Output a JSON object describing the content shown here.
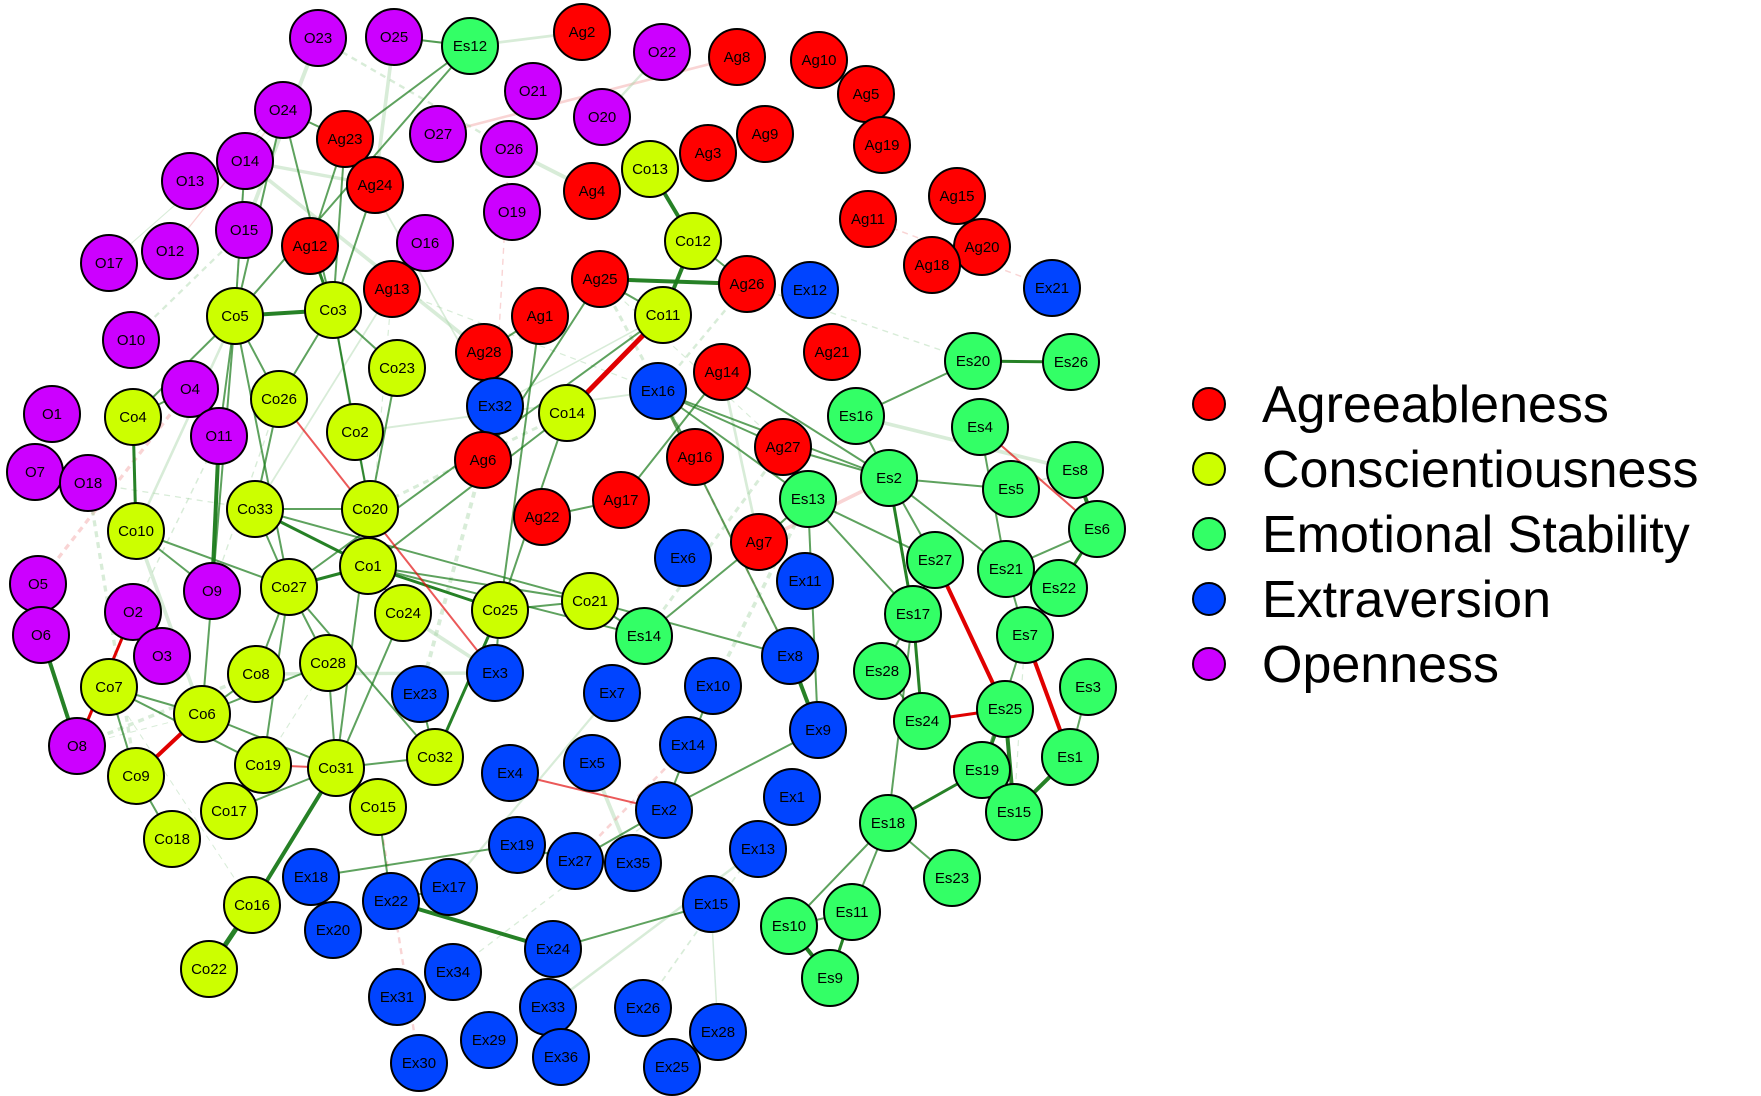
{
  "groups": {
    "Ag": {
      "name": "Agreeableness",
      "color": "#ff0000"
    },
    "Co": {
      "name": "Conscientiousness",
      "color": "#ccff00"
    },
    "Es": {
      "name": "Emotional Stability",
      "color": "#33ff66"
    },
    "Ex": {
      "name": "Extraversion",
      "color": "#0044ff"
    },
    "O": {
      "name": "Openness",
      "color": "#cc00ff"
    }
  },
  "legend": [
    {
      "label": "Agreeableness",
      "group": "Ag"
    },
    {
      "label": "Conscientiousness",
      "group": "Co"
    },
    {
      "label": "Emotional Stability",
      "group": "Es"
    },
    {
      "label": "Extraversion",
      "group": "Ex"
    },
    {
      "label": "Openness",
      "group": "O"
    }
  ],
  "edge_colors": {
    "positive": "#1a7a1a",
    "negative": "#e00000"
  },
  "nodes": [
    {
      "id": "O23",
      "group": "O"
    },
    {
      "id": "O25",
      "group": "O"
    },
    {
      "id": "Es12",
      "group": "Es"
    },
    {
      "id": "Ag2",
      "group": "Ag"
    },
    {
      "id": "O22",
      "group": "O"
    },
    {
      "id": "Ag8",
      "group": "Ag"
    },
    {
      "id": "Ag10",
      "group": "Ag"
    },
    {
      "id": "Ag5",
      "group": "Ag"
    },
    {
      "id": "O21",
      "group": "O"
    },
    {
      "id": "O20",
      "group": "O"
    },
    {
      "id": "O24",
      "group": "O"
    },
    {
      "id": "Ag23",
      "group": "Ag"
    },
    {
      "id": "O27",
      "group": "O"
    },
    {
      "id": "O26",
      "group": "O"
    },
    {
      "id": "Ag9",
      "group": "Ag"
    },
    {
      "id": "Ag19",
      "group": "Ag"
    },
    {
      "id": "Ag3",
      "group": "Ag"
    },
    {
      "id": "O14",
      "group": "O"
    },
    {
      "id": "Co13",
      "group": "Co"
    },
    {
      "id": "O13",
      "group": "O"
    },
    {
      "id": "Ag24",
      "group": "Ag"
    },
    {
      "id": "Ag4",
      "group": "Ag"
    },
    {
      "id": "O19",
      "group": "O"
    },
    {
      "id": "Ag15",
      "group": "Ag"
    },
    {
      "id": "Ag11",
      "group": "Ag"
    },
    {
      "id": "O15",
      "group": "O"
    },
    {
      "id": "O12",
      "group": "O"
    },
    {
      "id": "O17",
      "group": "O"
    },
    {
      "id": "Ag12",
      "group": "Ag"
    },
    {
      "id": "O16",
      "group": "O"
    },
    {
      "id": "Co12",
      "group": "Co"
    },
    {
      "id": "Ag20",
      "group": "Ag"
    },
    {
      "id": "Ag18",
      "group": "Ag"
    },
    {
      "id": "Ag25",
      "group": "Ag"
    },
    {
      "id": "Ag26",
      "group": "Ag"
    },
    {
      "id": "Ex12",
      "group": "Ex"
    },
    {
      "id": "Ex21",
      "group": "Ex"
    },
    {
      "id": "Ag13",
      "group": "Ag"
    },
    {
      "id": "Co5",
      "group": "Co"
    },
    {
      "id": "Co3",
      "group": "Co"
    },
    {
      "id": "Ag1",
      "group": "Ag"
    },
    {
      "id": "Co11",
      "group": "Co"
    },
    {
      "id": "O10",
      "group": "O"
    },
    {
      "id": "Ag21",
      "group": "Ag"
    },
    {
      "id": "Es20",
      "group": "Es"
    },
    {
      "id": "Es26",
      "group": "Es"
    },
    {
      "id": "Ag28",
      "group": "Ag"
    },
    {
      "id": "Co23",
      "group": "Co"
    },
    {
      "id": "Ag14",
      "group": "Ag"
    },
    {
      "id": "O4",
      "group": "O"
    },
    {
      "id": "Co26",
      "group": "Co"
    },
    {
      "id": "Ex16",
      "group": "Ex"
    },
    {
      "id": "Ex32",
      "group": "Ex"
    },
    {
      "id": "Co4",
      "group": "Co"
    },
    {
      "id": "O1",
      "group": "O"
    },
    {
      "id": "Co14",
      "group": "Co"
    },
    {
      "id": "Es16",
      "group": "Es"
    },
    {
      "id": "Es4",
      "group": "Es"
    },
    {
      "id": "Co2",
      "group": "Co"
    },
    {
      "id": "O11",
      "group": "O"
    },
    {
      "id": "Ag27",
      "group": "Ag"
    },
    {
      "id": "Ag6",
      "group": "Ag"
    },
    {
      "id": "Ag16",
      "group": "Ag"
    },
    {
      "id": "O7",
      "group": "O"
    },
    {
      "id": "O18",
      "group": "O"
    },
    {
      "id": "Es8",
      "group": "Es"
    },
    {
      "id": "Es2",
      "group": "Es"
    },
    {
      "id": "Es5",
      "group": "Es"
    },
    {
      "id": "Es13",
      "group": "Es"
    },
    {
      "id": "Co33",
      "group": "Co"
    },
    {
      "id": "Co20",
      "group": "Co"
    },
    {
      "id": "Ag17",
      "group": "Ag"
    },
    {
      "id": "Ag22",
      "group": "Ag"
    },
    {
      "id": "Es6",
      "group": "Es"
    },
    {
      "id": "Co10",
      "group": "Co"
    },
    {
      "id": "Ag7",
      "group": "Ag"
    },
    {
      "id": "Ex6",
      "group": "Ex"
    },
    {
      "id": "Es27",
      "group": "Es"
    },
    {
      "id": "Es21",
      "group": "Es"
    },
    {
      "id": "Co1",
      "group": "Co"
    },
    {
      "id": "Ex11",
      "group": "Ex"
    },
    {
      "id": "Es22",
      "group": "Es"
    },
    {
      "id": "O5",
      "group": "O"
    },
    {
      "id": "O9",
      "group": "O"
    },
    {
      "id": "Co27",
      "group": "Co"
    },
    {
      "id": "Co21",
      "group": "Co"
    },
    {
      "id": "Co24",
      "group": "Co"
    },
    {
      "id": "Co25",
      "group": "Co"
    },
    {
      "id": "Es17",
      "group": "Es"
    },
    {
      "id": "O2",
      "group": "O"
    },
    {
      "id": "Es14",
      "group": "Es"
    },
    {
      "id": "O6",
      "group": "O"
    },
    {
      "id": "Es7",
      "group": "Es"
    },
    {
      "id": "O3",
      "group": "O"
    },
    {
      "id": "Ex8",
      "group": "Ex"
    },
    {
      "id": "Co8",
      "group": "Co"
    },
    {
      "id": "Co28",
      "group": "Co"
    },
    {
      "id": "Es28",
      "group": "Es"
    },
    {
      "id": "Ex3",
      "group": "Ex"
    },
    {
      "id": "Co7",
      "group": "Co"
    },
    {
      "id": "Es3",
      "group": "Es"
    },
    {
      "id": "Ex10",
      "group": "Ex"
    },
    {
      "id": "Ex23",
      "group": "Ex"
    },
    {
      "id": "Ex7",
      "group": "Ex"
    },
    {
      "id": "Es25",
      "group": "Es"
    },
    {
      "id": "Co6",
      "group": "Co"
    },
    {
      "id": "Es24",
      "group": "Es"
    },
    {
      "id": "Ex9",
      "group": "Ex"
    },
    {
      "id": "O8",
      "group": "O"
    },
    {
      "id": "Ex14",
      "group": "Ex"
    },
    {
      "id": "Es1",
      "group": "Es"
    },
    {
      "id": "Co32",
      "group": "Co"
    },
    {
      "id": "Co19",
      "group": "Co"
    },
    {
      "id": "Co31",
      "group": "Co"
    },
    {
      "id": "Ex5",
      "group": "Ex"
    },
    {
      "id": "Ex4",
      "group": "Ex"
    },
    {
      "id": "Es19",
      "group": "Es"
    },
    {
      "id": "Co9",
      "group": "Co"
    },
    {
      "id": "Co15",
      "group": "Co"
    },
    {
      "id": "Ex1",
      "group": "Ex"
    },
    {
      "id": "Ex2",
      "group": "Ex"
    },
    {
      "id": "Co17",
      "group": "Co"
    },
    {
      "id": "Es15",
      "group": "Es"
    },
    {
      "id": "Es18",
      "group": "Es"
    },
    {
      "id": "Co18",
      "group": "Co"
    },
    {
      "id": "Ex19",
      "group": "Ex"
    },
    {
      "id": "Ex13",
      "group": "Ex"
    },
    {
      "id": "Ex27",
      "group": "Ex"
    },
    {
      "id": "Ex35",
      "group": "Ex"
    },
    {
      "id": "Ex18",
      "group": "Ex"
    },
    {
      "id": "Ex17",
      "group": "Ex"
    },
    {
      "id": "Es23",
      "group": "Es"
    },
    {
      "id": "Co16",
      "group": "Co"
    },
    {
      "id": "Ex22",
      "group": "Ex"
    },
    {
      "id": "Ex15",
      "group": "Ex"
    },
    {
      "id": "Es11",
      "group": "Es"
    },
    {
      "id": "Es10",
      "group": "Es"
    },
    {
      "id": "Ex20",
      "group": "Ex"
    },
    {
      "id": "Ex24",
      "group": "Ex"
    },
    {
      "id": "Co22",
      "group": "Co"
    },
    {
      "id": "Es9",
      "group": "Es"
    },
    {
      "id": "Ex34",
      "group": "Ex"
    },
    {
      "id": "Ex31",
      "group": "Ex"
    },
    {
      "id": "Ex33",
      "group": "Ex"
    },
    {
      "id": "Ex26",
      "group": "Ex"
    },
    {
      "id": "Ex28",
      "group": "Ex"
    },
    {
      "id": "Ex29",
      "group": "Ex"
    },
    {
      "id": "Ex36",
      "group": "Ex"
    },
    {
      "id": "Ex30",
      "group": "Ex"
    },
    {
      "id": "Ex25",
      "group": "Ex"
    }
  ],
  "edges": [
    [
      "O25",
      "Es12",
      "pos",
      2
    ],
    [
      "Es12",
      "Ag23",
      "pos",
      2
    ],
    [
      "Es12",
      "Co5",
      "pos",
      2
    ],
    [
      "O24",
      "Ag23",
      "pos",
      2
    ],
    [
      "O24",
      "Co3",
      "pos",
      2
    ],
    [
      "O24",
      "Co5",
      "pos",
      2
    ],
    [
      "Ag23",
      "Co3",
      "pos",
      2
    ],
    [
      "Ag23",
      "Ag12",
      "pos",
      2
    ],
    [
      "Ag24",
      "Co3",
      "pos",
      2
    ],
    [
      "Ag12",
      "Co3",
      "pos",
      3
    ],
    [
      "Co5",
      "Co3",
      "pos",
      4
    ],
    [
      "Co5",
      "Co4",
      "pos",
      2
    ],
    [
      "Co5",
      "O11",
      "pos",
      2
    ],
    [
      "Co5",
      "Co26",
      "pos",
      2
    ],
    [
      "Co5",
      "Co27",
      "pos",
      2
    ],
    [
      "Co3",
      "Co2",
      "pos",
      2
    ],
    [
      "Co3",
      "Co23",
      "pos",
      2
    ],
    [
      "Co3",
      "Co20",
      "pos",
      2
    ],
    [
      "Co3",
      "Co26",
      "pos",
      2
    ],
    [
      "O14",
      "Co5",
      "pos",
      2
    ],
    [
      "Co13",
      "Co12",
      "pos",
      4
    ],
    [
      "Co12",
      "Co11",
      "pos",
      4
    ],
    [
      "Ag25",
      "Ag26",
      "pos",
      4
    ],
    [
      "Ag25",
      "Co11",
      "pos",
      2
    ],
    [
      "Co11",
      "Co14",
      "neg",
      5
    ],
    [
      "Co11",
      "Co27",
      "pos",
      2
    ],
    [
      "Ag25",
      "Ag6",
      "pos",
      2
    ],
    [
      "Ag26",
      "Co12",
      "pos",
      2
    ],
    [
      "Ag14",
      "Ag17",
      "pos",
      2
    ],
    [
      "Ag28",
      "Ag1",
      "pos",
      2
    ],
    [
      "Co4",
      "Co10",
      "pos",
      3
    ],
    [
      "O11",
      "O9",
      "pos",
      4
    ],
    [
      "Co10",
      "Co27",
      "pos",
      2
    ],
    [
      "Co10",
      "O9",
      "pos",
      2
    ],
    [
      "Co33",
      "Co1",
      "pos",
      3
    ],
    [
      "Co33",
      "Co20",
      "pos",
      2
    ],
    [
      "Co33",
      "Co21",
      "pos",
      2
    ],
    [
      "Co20",
      "Co1",
      "pos",
      3
    ],
    [
      "Co1",
      "Co27",
      "pos",
      3
    ],
    [
      "Co1",
      "Co25",
      "pos",
      3
    ],
    [
      "Co1",
      "Co24",
      "pos",
      2
    ],
    [
      "Co1",
      "Co21",
      "pos",
      2
    ],
    [
      "Co27",
      "Co28",
      "pos",
      2
    ],
    [
      "Co27",
      "Co8",
      "pos",
      2
    ],
    [
      "Co27",
      "Co19",
      "pos",
      2
    ],
    [
      "Co27",
      "Co32",
      "pos",
      2
    ],
    [
      "Co25",
      "Co21",
      "pos",
      2
    ],
    [
      "Co25",
      "Co32",
      "pos",
      3
    ],
    [
      "Co25",
      "Co14",
      "pos",
      2
    ],
    [
      "Co28",
      "Co31",
      "pos",
      2
    ],
    [
      "Co8",
      "Co6",
      "pos",
      2
    ],
    [
      "Co6",
      "Co7",
      "pos",
      2
    ],
    [
      "Co6",
      "Co9",
      "neg",
      4
    ],
    [
      "Co6",
      "Co31",
      "pos",
      2
    ],
    [
      "Co7",
      "Co9",
      "pos",
      2
    ],
    [
      "O6",
      "O8",
      "pos",
      4
    ],
    [
      "O2",
      "O8",
      "neg",
      3
    ],
    [
      "Co31",
      "Co19",
      "neg",
      2
    ],
    [
      "Co31",
      "Co16",
      "pos",
      4
    ],
    [
      "Co31",
      "Co17",
      "pos",
      2
    ],
    [
      "Co31",
      "Co32",
      "pos",
      2
    ],
    [
      "Co16",
      "Co22",
      "pos",
      5
    ],
    [
      "Co31",
      "Co20",
      "pos",
      2
    ],
    [
      "Co9",
      "Co18",
      "pos",
      2
    ],
    [
      "Co32",
      "Ex23",
      "pos",
      2
    ],
    [
      "Co15",
      "Ex22",
      "pos",
      2
    ],
    [
      "Ex18",
      "Ex19",
      "pos",
      2
    ],
    [
      "Ex22",
      "Ex24",
      "pos",
      4
    ],
    [
      "Ex22",
      "Ex17",
      "pos",
      2
    ],
    [
      "Ex19",
      "Ex27",
      "pos",
      2
    ],
    [
      "Ex27",
      "Ex2",
      "pos",
      2
    ],
    [
      "Ex27",
      "Ex35",
      "pos",
      2
    ],
    [
      "Ex4",
      "Ex2",
      "neg",
      2
    ],
    [
      "Ex2",
      "Ex9",
      "pos",
      2
    ],
    [
      "Ex8",
      "Ex9",
      "pos",
      4
    ],
    [
      "Ex8",
      "Co21",
      "pos",
      2
    ],
    [
      "Ex16",
      "Es13",
      "pos",
      2
    ],
    [
      "Ex16",
      "Ag27",
      "pos",
      2
    ],
    [
      "Ex16",
      "Es2",
      "pos",
      2
    ],
    [
      "Ex16",
      "Ex8",
      "pos",
      2
    ],
    [
      "Ag27",
      "Es2",
      "pos",
      2
    ],
    [
      "Ag14",
      "Es2",
      "pos",
      2
    ],
    [
      "Ag16",
      "Ex16",
      "pos",
      2
    ],
    [
      "Es16",
      "Es20",
      "pos",
      2
    ],
    [
      "Es20",
      "Es26",
      "pos",
      3
    ],
    [
      "Es16",
      "Es2",
      "pos",
      2
    ],
    [
      "Es2",
      "Es27",
      "pos",
      2
    ],
    [
      "Es2",
      "Es17",
      "pos",
      3
    ],
    [
      "Es2",
      "Es21",
      "pos",
      2
    ],
    [
      "Es13",
      "Es17",
      "pos",
      2
    ],
    [
      "Es13",
      "Es27",
      "pos",
      2
    ],
    [
      "Es13",
      "Ex9",
      "pos",
      2
    ],
    [
      "Es4",
      "Es21",
      "pos",
      2
    ],
    [
      "Es4",
      "Es6",
      "neg",
      2
    ],
    [
      "Es8",
      "Es6",
      "pos",
      4
    ],
    [
      "Es6",
      "Es22",
      "pos",
      3
    ],
    [
      "Es6",
      "Es21",
      "pos",
      2
    ],
    [
      "Es21",
      "Es7",
      "pos",
      2
    ],
    [
      "Es21",
      "Es22",
      "pos",
      2
    ],
    [
      "Es27",
      "Es25",
      "neg",
      4
    ],
    [
      "Es27",
      "Es17",
      "pos",
      2
    ],
    [
      "Es17",
      "Es24",
      "pos",
      3
    ],
    [
      "Es17",
      "Es28",
      "pos",
      2
    ],
    [
      "Es17",
      "Es18",
      "pos",
      2
    ],
    [
      "Es28",
      "Es24",
      "pos",
      2
    ],
    [
      "Es24",
      "Es25",
      "neg",
      3
    ],
    [
      "Es7",
      "Es1",
      "neg",
      4
    ],
    [
      "Es7",
      "Es19",
      "pos",
      2
    ],
    [
      "Es25",
      "Es19",
      "pos",
      3
    ],
    [
      "Es25",
      "Es15",
      "pos",
      4
    ],
    [
      "Es19",
      "Es18",
      "pos",
      3
    ],
    [
      "Es19",
      "Es15",
      "pos",
      2
    ],
    [
      "Es1",
      "Es15",
      "pos",
      4
    ],
    [
      "Es3",
      "Es1",
      "pos",
      2
    ],
    [
      "Es18",
      "Es23",
      "pos",
      2
    ],
    [
      "Es18",
      "Es10",
      "pos",
      2
    ],
    [
      "Es18",
      "Es11",
      "pos",
      2
    ],
    [
      "Es10",
      "Es11",
      "pos",
      2
    ],
    [
      "Es10",
      "Es9",
      "pos",
      4
    ],
    [
      "Es11",
      "Es9",
      "pos",
      3
    ],
    [
      "Es14",
      "Co21",
      "pos",
      2
    ],
    [
      "Es14",
      "Co1",
      "pos",
      2
    ],
    [
      "Ag7",
      "Es14",
      "pos",
      2
    ],
    [
      "Ag7",
      "Es13",
      "pos",
      2
    ],
    [
      "Co26",
      "Co33",
      "pos",
      2
    ],
    [
      "Co4",
      "O4",
      "pos",
      2
    ],
    [
      "Co2",
      "Co20",
      "pos",
      2
    ],
    [
      "Ex3",
      "Co25",
      "pos",
      2
    ],
    [
      "Co17",
      "Co19",
      "pos",
      2
    ],
    [
      "Co19",
      "Co7",
      "pos",
      2
    ],
    [
      "Co14",
      "Co1",
      "pos",
      2
    ],
    [
      "Ag22",
      "Ag17",
      "pos",
      2
    ],
    [
      "Ex32",
      "Ag28",
      "pos",
      2
    ],
    [
      "Co24",
      "Co31",
      "pos",
      2
    ],
    [
      "Co28",
      "Co6",
      "pos",
      2
    ],
    [
      "Co23",
      "Co20",
      "pos",
      2
    ],
    [
      "Ag1",
      "Co25",
      "pos",
      2
    ],
    [
      "Ex10",
      "Ex2",
      "pos",
      2
    ],
    [
      "Es5",
      "Es2",
      "pos",
      2
    ],
    [
      "Co26",
      "Ex3",
      "neg",
      2
    ],
    [
      "Co33",
      "Co27",
      "pos",
      2
    ],
    [
      "O5",
      "O6",
      "pos",
      2
    ],
    [
      "Co5",
      "Co6",
      "pos",
      2
    ],
    [
      "Ex15",
      "Ex24",
      "pos",
      2
    ]
  ]
}
